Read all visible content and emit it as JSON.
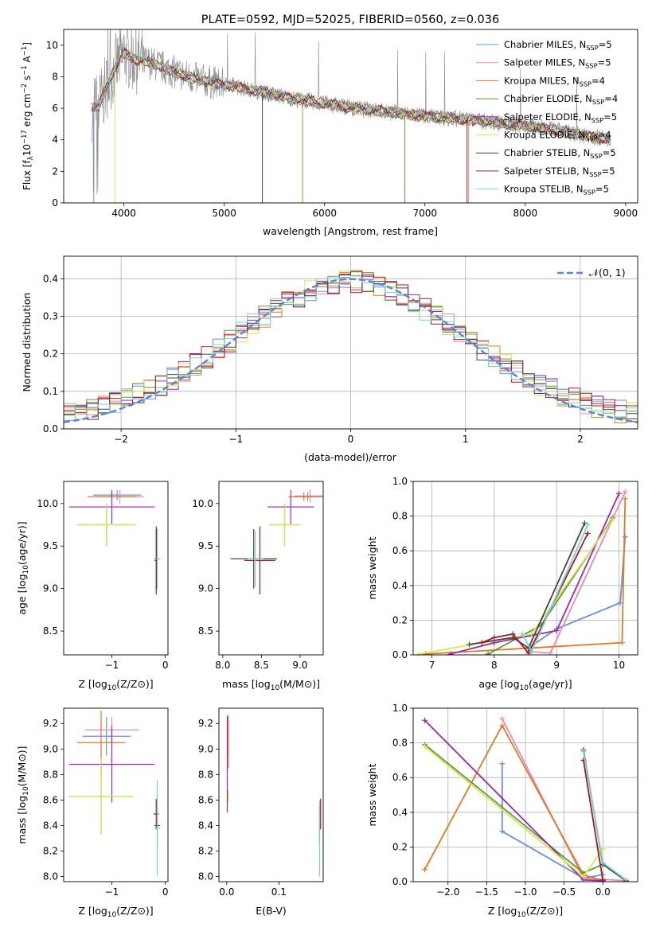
{
  "colors": {
    "Chabrier MILES": "#6b8fd8",
    "Salpeter MILES": "#e88ab8",
    "Kroupa MILES": "#e07a22",
    "Chabrier ELODIE": "#5a9a3a",
    "Salpeter ELODIE": "#9a2aa8",
    "Kroupa ELODIE": "#d8e650",
    "Chabrier STELIB": "#444444",
    "Salpeter STELIB": "#a01c1c",
    "Kroupa STELIB": "#7ad2d8",
    "data": "#8a8a8a",
    "normal": "#5a86cc"
  },
  "chart_data": [
    {
      "type": "line",
      "title": "PLATE=0592, MJD=52025, FIBERID=0560, z=0.036",
      "xlabel": "wavelength [Angstrom, rest frame]",
      "ylabel": "Flux [f_λ 10^-17 erg cm^-2 s^-1 A^-1]",
      "xlim": [
        3400,
        9120
      ],
      "ylim": [
        0,
        11
      ],
      "xticks": [
        4000,
        5000,
        6000,
        7000,
        8000,
        9000
      ],
      "yticks": [
        0,
        2,
        4,
        6,
        8,
        10
      ],
      "legend_position": "top-right",
      "legend": [
        {
          "base": "Chabrier MILES, N",
          "sub": "SSP",
          "tail": "=5"
        },
        {
          "base": "Salpeter MILES, N",
          "sub": "SSP",
          "tail": "=5"
        },
        {
          "base": "Kroupa MILES, N",
          "sub": "SSP",
          "tail": "=4"
        },
        {
          "base": "Chabrier ELODIE, N",
          "sub": "SSP",
          "tail": "=4"
        },
        {
          "base": "Salpeter ELODIE, N",
          "sub": "SSP",
          "tail": "=5"
        },
        {
          "base": "Kroupa ELODIE, N",
          "sub": "SSP",
          "tail": "=4"
        },
        {
          "base": "Chabrier STELIB, N",
          "sub": "SSP",
          "tail": "=5"
        },
        {
          "base": "Salpeter STELIB, N",
          "sub": "SSP",
          "tail": "=5"
        },
        {
          "base": "Kroupa STELIB, N",
          "sub": "SSP",
          "tail": "=5"
        }
      ],
      "model_continuum": {
        "x": [
          3680,
          3750,
          3900,
          4000,
          4100,
          4300,
          4500,
          4700,
          4900,
          5100,
          5400,
          5700,
          6000,
          6300,
          6600,
          7000,
          7400,
          7700,
          8000,
          8300,
          8600,
          8850
        ],
        "y": [
          6.0,
          6.2,
          8.4,
          9.5,
          9.1,
          8.8,
          8.3,
          7.9,
          7.6,
          7.4,
          7.0,
          6.6,
          6.3,
          6.0,
          5.8,
          5.5,
          5.3,
          5.1,
          4.9,
          4.6,
          4.3,
          4.0
        ]
      }
    },
    {
      "type": "histogram",
      "xlabel": "(data-model)/error",
      "ylabel": "Normed distribution",
      "xlim": [
        -2.5,
        2.5
      ],
      "ylim": [
        0,
        0.46
      ],
      "xticks": [
        -2,
        -1,
        0,
        1,
        2
      ],
      "yticks": [
        0.0,
        0.1,
        0.2,
        0.3,
        0.4
      ],
      "bin_width": 0.1,
      "grid": true,
      "legend_position": "top-right",
      "reference_label": "𝒩(0, 1)"
    },
    {
      "type": "scatter",
      "xlabel_base": "Z [log",
      "xlabel_sub": "10",
      "xlabel_tail": "(Z/Z⊙)]",
      "ylabel_base": "age  [log",
      "ylabel_sub": "10",
      "ylabel_tail": "(age/yr)]",
      "xlim": [
        -1.9,
        0.05
      ],
      "ylim": [
        8.22,
        10.26
      ],
      "xticks": [
        -1,
        0
      ],
      "yticks": [
        8.5,
        9.0,
        9.5,
        10.0
      ],
      "points": [
        {
          "model": "Chabrier MILES",
          "x": -0.9,
          "y": 10.1,
          "xerr": 0.45,
          "yerr": 0.06
        },
        {
          "model": "Salpeter MILES",
          "x": -0.85,
          "y": 10.08,
          "xerr": 0.45,
          "yerr": 0.08
        },
        {
          "model": "Kroupa MILES",
          "x": -1.0,
          "y": 10.08,
          "xerr": 0.45,
          "yerr": 0.05
        },
        {
          "model": "Chabrier ELODIE",
          "x": -1.1,
          "y": 9.75,
          "xerr": 0.55,
          "yerr": 0.25
        },
        {
          "model": "Salpeter ELODIE",
          "x": -1.0,
          "y": 9.96,
          "xerr": 0.8,
          "yerr": 0.2
        },
        {
          "model": "Kroupa ELODIE",
          "x": -1.1,
          "y": 9.75,
          "xerr": 0.55,
          "yerr": 0.25
        },
        {
          "model": "Chabrier STELIB",
          "x": -0.16,
          "y": 9.35,
          "xerr": 0.05,
          "yerr": 0.35
        },
        {
          "model": "Salpeter STELIB",
          "x": -0.17,
          "y": 9.33,
          "xerr": 0.03,
          "yerr": 0.4
        },
        {
          "model": "Kroupa STELIB",
          "x": -0.15,
          "y": 9.35,
          "xerr": 0.05,
          "yerr": 0.33
        }
      ]
    },
    {
      "type": "scatter",
      "xlabel_base": "mass [log",
      "xlabel_sub": "10",
      "xlabel_tail": "(M/M⊙)]",
      "xlim": [
        7.95,
        9.3
      ],
      "ylim": [
        8.22,
        10.26
      ],
      "xticks": [
        8.0,
        8.5,
        9.0
      ],
      "yticks": [
        8.5,
        9.0,
        9.5,
        10.0
      ],
      "points": [
        {
          "model": "Chabrier MILES",
          "x": 9.1,
          "y": 10.08,
          "xerr": 0.2,
          "yerr": 0.05
        },
        {
          "model": "Salpeter MILES",
          "x": 9.13,
          "y": 10.09,
          "xerr": 0.2,
          "yerr": 0.08
        },
        {
          "model": "Kroupa MILES",
          "x": 9.05,
          "y": 10.08,
          "xerr": 0.2,
          "yerr": 0.05
        },
        {
          "model": "Chabrier ELODIE",
          "x": 8.8,
          "y": 9.75,
          "xerr": 0.2,
          "yerr": 0.25
        },
        {
          "model": "Salpeter ELODIE",
          "x": 8.88,
          "y": 9.96,
          "xerr": 0.3,
          "yerr": 0.2
        },
        {
          "model": "Kroupa ELODIE",
          "x": 8.8,
          "y": 9.75,
          "xerr": 0.2,
          "yerr": 0.25
        },
        {
          "model": "Chabrier STELIB",
          "x": 8.4,
          "y": 9.35,
          "xerr": 0.3,
          "yerr": 0.35
        },
        {
          "model": "Salpeter STELIB",
          "x": 8.48,
          "y": 9.33,
          "xerr": 0.2,
          "yerr": 0.4
        },
        {
          "model": "Kroupa STELIB",
          "x": 8.42,
          "y": 9.35,
          "xerr": 0.1,
          "yerr": 0.33
        }
      ]
    },
    {
      "type": "line",
      "xlabel_base": "age  [log",
      "xlabel_sub": "10",
      "xlabel_tail": "(age/yr)]",
      "ylabel": "mass weight",
      "xlim": [
        6.7,
        10.3
      ],
      "ylim": [
        0,
        1
      ],
      "xticks": [
        7,
        8,
        9,
        10
      ],
      "yticks": [
        0.0,
        0.2,
        0.4,
        0.6,
        0.8,
        1.0
      ],
      "grid": true,
      "series": [
        {
          "model": "Chabrier MILES",
          "points": [
            [
              8.55,
              0.04
            ],
            [
              9.0,
              0.15
            ],
            [
              10.02,
              0.3
            ],
            [
              10.1,
              0.68
            ]
          ]
        },
        {
          "model": "Salpeter MILES",
          "points": [
            [
              8.55,
              0.02
            ],
            [
              8.9,
              0.01
            ],
            [
              10.1,
              0.94
            ]
          ]
        },
        {
          "model": "Kroupa MILES",
          "points": [
            [
              6.9,
              0.005
            ],
            [
              8.6,
              0.04
            ],
            [
              10.05,
              0.07
            ],
            [
              10.1,
              0.9
            ]
          ]
        },
        {
          "model": "Chabrier ELODIE",
          "points": [
            [
              7.9,
              0.005
            ],
            [
              8.75,
              0.17
            ],
            [
              9.9,
              0.79
            ]
          ]
        },
        {
          "model": "Salpeter ELODIE",
          "points": [
            [
              7.3,
              0.005
            ],
            [
              8.0,
              0.07
            ],
            [
              9.0,
              0.14
            ],
            [
              10.0,
              0.93
            ]
          ]
        },
        {
          "model": "Kroupa ELODIE",
          "points": [
            [
              6.8,
              0.005
            ],
            [
              8.6,
              0.12
            ],
            [
              9.9,
              0.78
            ]
          ]
        },
        {
          "model": "Chabrier STELIB",
          "points": [
            [
              7.6,
              0.06
            ],
            [
              8.3,
              0.1
            ],
            [
              8.55,
              0.04
            ],
            [
              9.45,
              0.76
            ]
          ]
        },
        {
          "model": "Salpeter STELIB",
          "points": [
            [
              7.8,
              0.07
            ],
            [
              8.0,
              0.1
            ],
            [
              8.3,
              0.12
            ],
            [
              8.55,
              0.01
            ],
            [
              9.5,
              0.7
            ]
          ]
        },
        {
          "model": "Kroupa STELIB",
          "points": [
            [
              8.45,
              0.12
            ],
            [
              8.6,
              0.02
            ],
            [
              9.5,
              0.75
            ]
          ]
        }
      ]
    },
    {
      "type": "scatter",
      "xlabel_base": "Z [log",
      "xlabel_sub": "10",
      "xlabel_tail": "(Z/Z⊙)]",
      "ylabel_base": "mass [log",
      "ylabel_sub": "10",
      "ylabel_tail": "(M/M⊙)]",
      "xlim": [
        -1.9,
        0.05
      ],
      "ylim": [
        7.96,
        9.32
      ],
      "xticks": [
        -1,
        0
      ],
      "yticks": [
        8.0,
        8.2,
        8.4,
        8.6,
        8.8,
        9.0,
        9.2
      ],
      "points": [
        {
          "model": "Chabrier MILES",
          "x": -1.1,
          "y": 9.1,
          "xerr": 0.45,
          "yerr": 0.15
        },
        {
          "model": "Salpeter MILES",
          "x": -1.0,
          "y": 9.15,
          "xerr": 0.5,
          "yerr": 0.1
        },
        {
          "model": "Kroupa MILES",
          "x": -1.2,
          "y": 9.05,
          "xerr": 0.45,
          "yerr": 0.25
        },
        {
          "model": "Chabrier ELODIE",
          "x": -1.2,
          "y": 8.63,
          "xerr": 0.6,
          "yerr": 0.3
        },
        {
          "model": "Salpeter ELODIE",
          "x": -1.0,
          "y": 8.88,
          "xerr": 0.8,
          "yerr": 0.3
        },
        {
          "model": "Kroupa ELODIE",
          "x": -1.2,
          "y": 8.63,
          "xerr": 0.6,
          "yerr": 0.3
        },
        {
          "model": "Chabrier STELIB",
          "x": -0.15,
          "y": 8.4,
          "xerr": 0.05,
          "yerr": 0.15
        },
        {
          "model": "Salpeter STELIB",
          "x": -0.17,
          "y": 8.49,
          "xerr": 0.05,
          "yerr": 0.12
        },
        {
          "model": "Kroupa STELIB",
          "x": -0.15,
          "y": 8.38,
          "xerr": 0.05,
          "yerr": 0.38
        }
      ]
    },
    {
      "type": "scatter",
      "xlabel": "E(B-V)",
      "xlim": [
        -0.015,
        0.185
      ],
      "ylim": [
        7.96,
        9.32
      ],
      "xticks": [
        0.0,
        0.1
      ],
      "yticks": [
        8.0,
        8.2,
        8.4,
        8.6,
        8.8,
        9.0,
        9.2
      ],
      "points": [
        {
          "model": "Chabrier MILES",
          "x": 0.002,
          "y": 9.1,
          "xerr": 0,
          "yerr": 0.15
        },
        {
          "model": "Salpeter MILES",
          "x": 0.002,
          "y": 9.15,
          "xerr": 0,
          "yerr": 0.12
        },
        {
          "model": "Kroupa MILES",
          "x": 0.003,
          "y": 9.05,
          "xerr": 0,
          "yerr": 0.2
        },
        {
          "model": "Chabrier ELODIE",
          "x": 0.002,
          "y": 8.63,
          "xerr": 0,
          "yerr": 0.05
        },
        {
          "model": "Salpeter ELODIE",
          "x": 0.001,
          "y": 8.88,
          "xerr": 0,
          "yerr": 0.38
        },
        {
          "model": "Kroupa ELODIE",
          "x": 0.003,
          "y": 8.63,
          "xerr": 0,
          "yerr": 0.05
        },
        {
          "model": "Chabrier STELIB",
          "x": 0.178,
          "y": 8.4,
          "xerr": 0,
          "yerr": 0.15
        },
        {
          "model": "Salpeter STELIB",
          "x": 0.18,
          "y": 8.49,
          "xerr": 0,
          "yerr": 0.12
        },
        {
          "model": "Kroupa STELIB",
          "x": 0.178,
          "y": 8.3,
          "xerr": 0,
          "yerr": 0.3
        }
      ]
    },
    {
      "type": "line",
      "xlabel_base": "Z [log",
      "xlabel_sub": "10",
      "xlabel_tail": "(Z/Z⊙)]",
      "ylabel": "mass weight",
      "xlim": [
        -2.45,
        0.45
      ],
      "ylim": [
        0,
        1
      ],
      "xticks": [
        -2.0,
        -1.5,
        -1.0,
        -0.5,
        0.0
      ],
      "yticks": [
        0.0,
        0.2,
        0.4,
        0.6,
        0.8,
        1.0
      ],
      "grid": true,
      "series": [
        {
          "model": "Chabrier MILES",
          "points": [
            [
              -1.3,
              0.68
            ],
            [
              -1.3,
              0.29
            ],
            [
              -0.25,
              0.02
            ],
            [
              0.0,
              0.04
            ]
          ]
        },
        {
          "model": "Salpeter MILES",
          "points": [
            [
              -1.3,
              0.94
            ],
            [
              -0.25,
              0.02
            ],
            [
              0.3,
              0.005
            ]
          ]
        },
        {
          "model": "Kroupa MILES",
          "points": [
            [
              -2.3,
              0.07
            ],
            [
              -1.3,
              0.9
            ],
            [
              -0.25,
              0.04
            ],
            [
              0.0,
              0.005
            ]
          ]
        },
        {
          "model": "Chabrier ELODIE",
          "points": [
            [
              -2.3,
              0.79
            ],
            [
              -0.25,
              0.05
            ],
            [
              0.0,
              0.1
            ]
          ]
        },
        {
          "model": "Salpeter ELODIE",
          "points": [
            [
              -2.3,
              0.93
            ],
            [
              -0.25,
              0.01
            ],
            [
              0.0,
              0.005
            ]
          ]
        },
        {
          "model": "Kroupa ELODIE",
          "points": [
            [
              -2.3,
              0.78
            ],
            [
              -0.25,
              0.03
            ],
            [
              0.0,
              0.19
            ]
          ]
        },
        {
          "model": "Chabrier STELIB",
          "points": [
            [
              -0.25,
              0.76
            ],
            [
              0.0,
              0.1
            ],
            [
              0.3,
              0.005
            ]
          ]
        },
        {
          "model": "Salpeter STELIB",
          "points": [
            [
              -0.25,
              0.7
            ],
            [
              0.0,
              0.01
            ]
          ]
        },
        {
          "model": "Kroupa STELIB",
          "points": [
            [
              -0.25,
              0.75
            ],
            [
              0.0,
              0.11
            ],
            [
              0.3,
              0.01
            ]
          ]
        }
      ]
    }
  ]
}
